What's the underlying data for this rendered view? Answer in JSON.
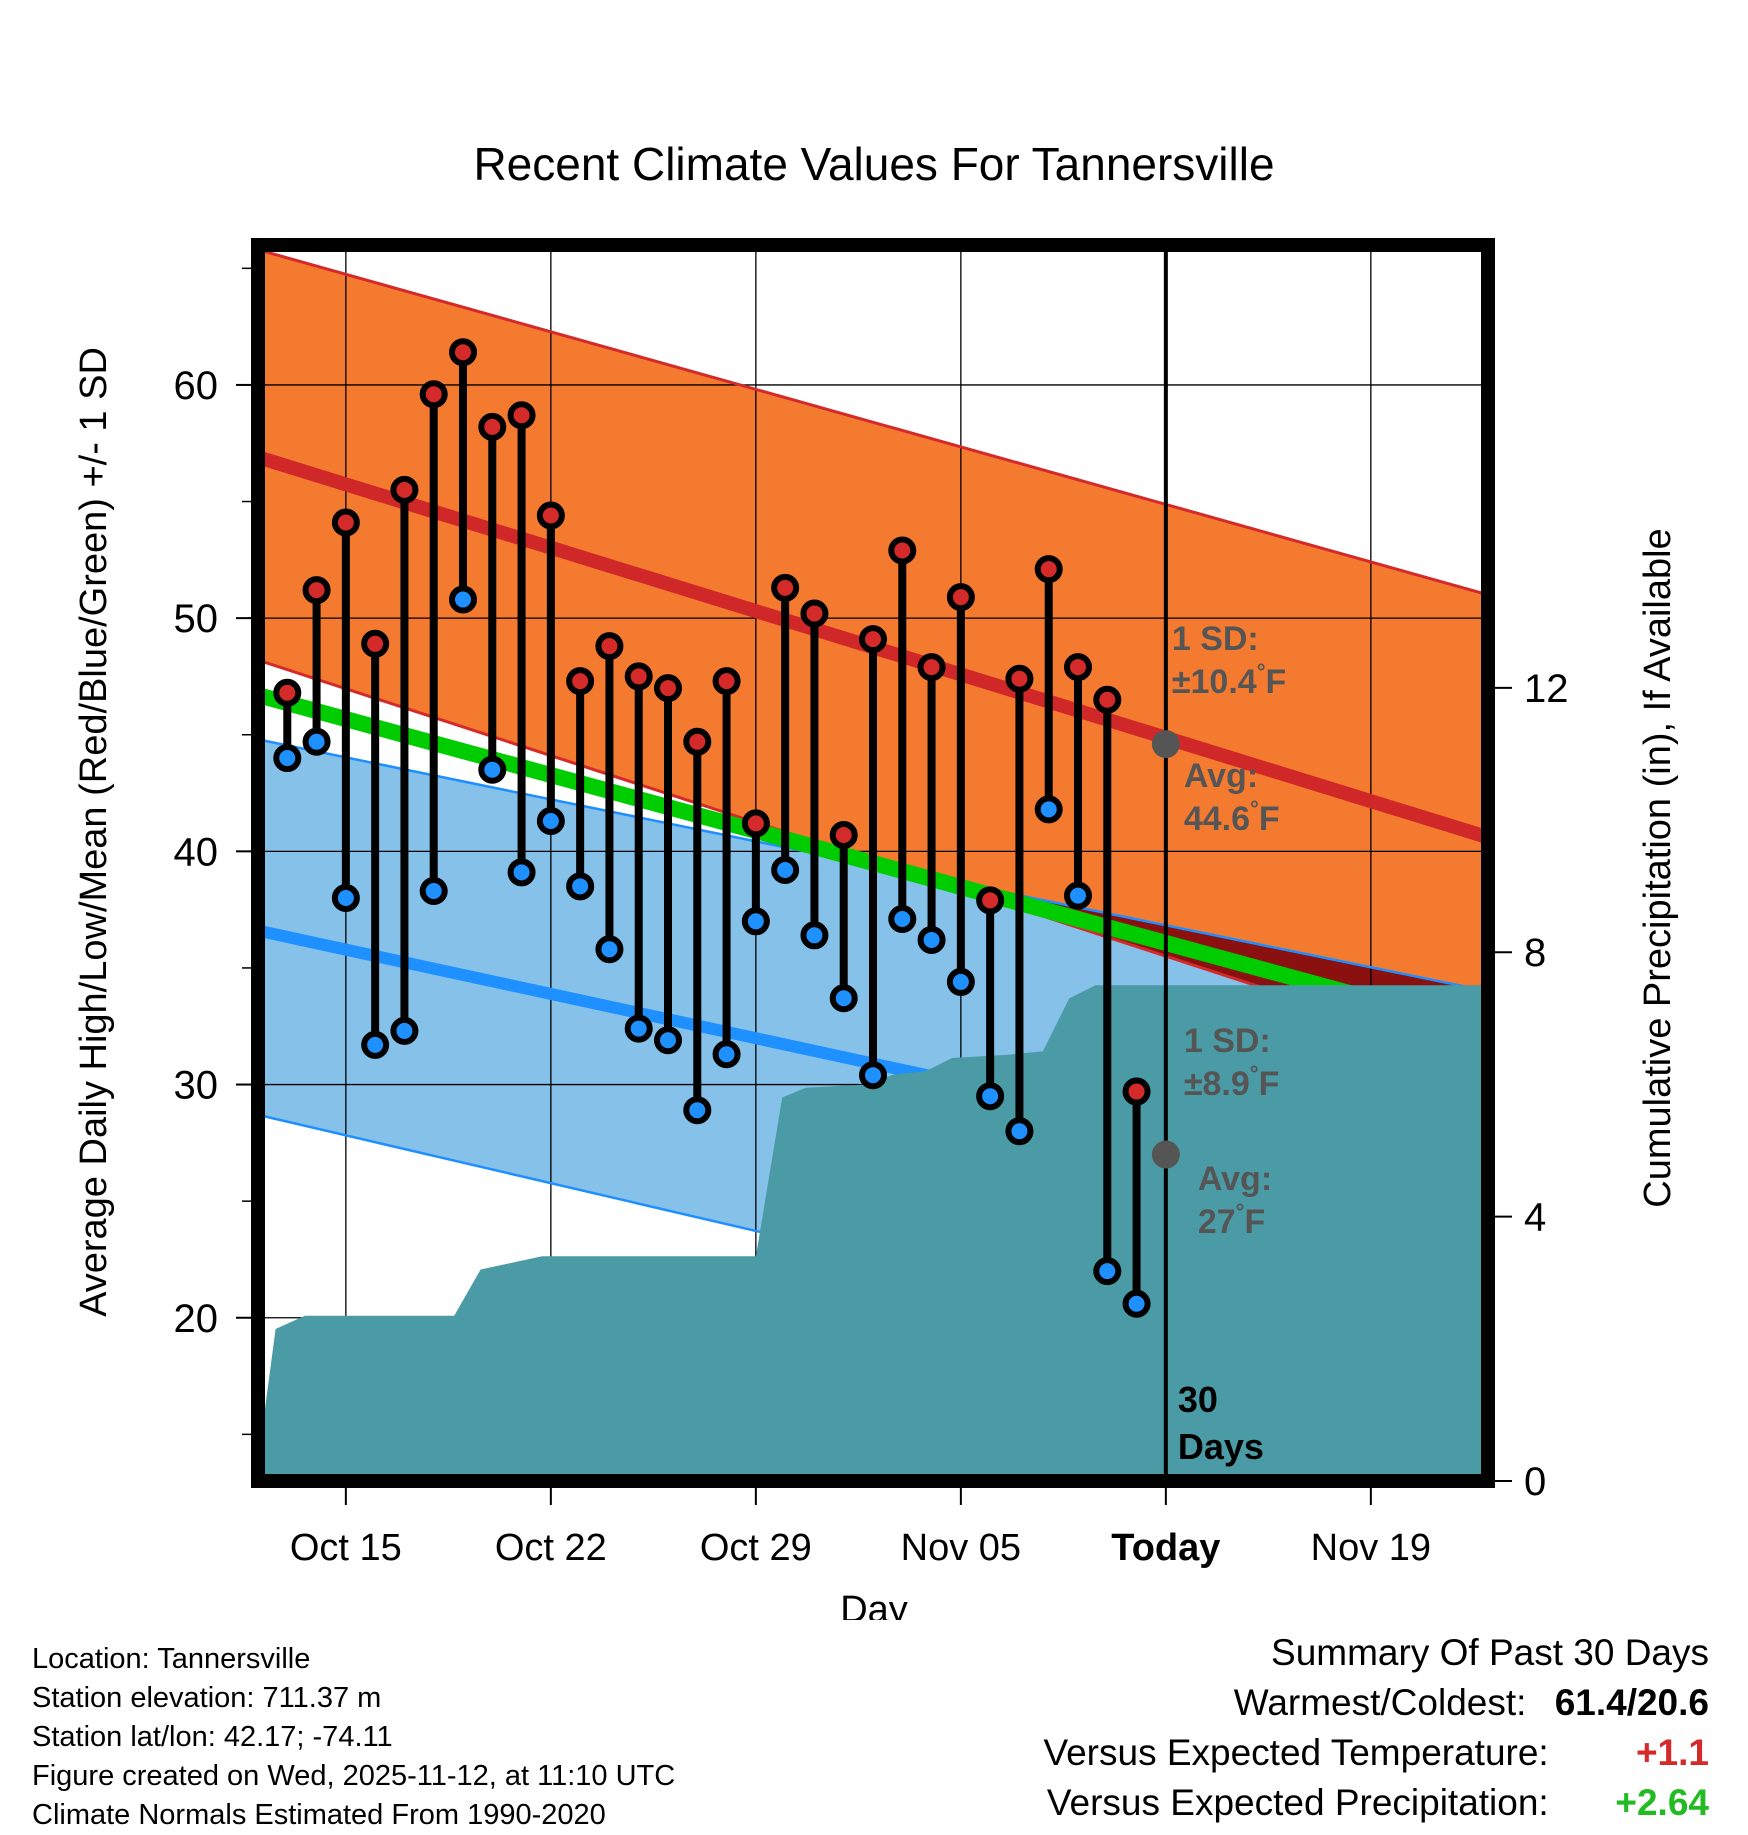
{
  "chart_data": {
    "type": "line",
    "title": "Recent Climate Values For Tannersville",
    "xlabel": "Day",
    "ylabel": "Average Daily High/Low/Mean (Red/Blue/Green) +/- 1 SD",
    "y2label": "Cumulative Precipitation (in), If Available",
    "ylim": [
      13,
      66
    ],
    "y2lim": [
      0,
      18.7
    ],
    "xlim_day": [
      0,
      42
    ],
    "x_ticks": [
      {
        "day": 3,
        "label": "Oct 15"
      },
      {
        "day": 10,
        "label": "Oct 22"
      },
      {
        "day": 17,
        "label": "Oct 29"
      },
      {
        "day": 24,
        "label": "Nov 05"
      },
      {
        "day": 31,
        "label": "Today"
      },
      {
        "day": 38,
        "label": "Nov 19"
      }
    ],
    "y_ticks": [
      20,
      30,
      40,
      50,
      60
    ],
    "y2_ticks": [
      0,
      4,
      8,
      12
    ],
    "today_day": 31,
    "daily_observations": {
      "start_label": "Oct 13",
      "days": [
        1,
        2,
        3,
        4,
        5,
        6,
        7,
        8,
        9,
        10,
        11,
        12,
        13,
        14,
        15,
        16,
        17,
        18,
        19,
        20,
        21,
        22,
        23,
        24,
        25,
        26,
        27,
        28,
        29,
        30
      ],
      "high": [
        46.8,
        51.2,
        54.1,
        48.9,
        55.5,
        59.6,
        61.4,
        58.2,
        58.7,
        54.4,
        47.3,
        48.8,
        47.5,
        47.0,
        44.7,
        47.3,
        41.2,
        51.3,
        50.2,
        40.7,
        49.1,
        52.9,
        47.9,
        50.9,
        37.9,
        47.4,
        52.1,
        47.9,
        46.5,
        29.7
      ],
      "low": [
        44.0,
        44.7,
        38.0,
        31.7,
        32.3,
        38.3,
        50.8,
        43.5,
        39.1,
        41.3,
        38.5,
        35.8,
        32.4,
        31.9,
        28.9,
        31.3,
        37.0,
        39.2,
        36.4,
        33.7,
        30.4,
        37.1,
        36.2,
        34.4,
        29.5,
        28.0,
        41.8,
        38.1,
        22.0,
        20.6
      ]
    },
    "normals": {
      "mean_high": {
        "start": 56.9,
        "end": 40.6
      },
      "high_sd_upper": {
        "start": 65.8,
        "end": 51.0
      },
      "high_sd_lower": {
        "start": 48.2,
        "end": 31.0
      },
      "mean_low": {
        "start": 36.6,
        "end": 25.2
      },
      "low_sd_upper": {
        "start": 44.8,
        "end": 34.0
      },
      "low_sd_lower": {
        "start": 28.7,
        "end": 16.4
      },
      "mean": {
        "start": 46.7,
        "end": 32.3
      }
    },
    "cumulative_precip_in": [
      {
        "day": 0,
        "value": 0.3
      },
      {
        "day": 0.6,
        "value": 2.3
      },
      {
        "day": 1.6,
        "value": 2.5
      },
      {
        "day": 6.7,
        "value": 2.5
      },
      {
        "day": 7.6,
        "value": 3.2
      },
      {
        "day": 9.7,
        "value": 3.4
      },
      {
        "day": 17.0,
        "value": 3.4
      },
      {
        "day": 17.9,
        "value": 5.8
      },
      {
        "day": 18.7,
        "value": 5.95
      },
      {
        "day": 20.8,
        "value": 6.0
      },
      {
        "day": 21.7,
        "value": 6.15
      },
      {
        "day": 22.8,
        "value": 6.2
      },
      {
        "day": 23.7,
        "value": 6.4
      },
      {
        "day": 25.6,
        "value": 6.45
      },
      {
        "day": 26.8,
        "value": 6.5
      },
      {
        "day": 27.7,
        "value": 7.3
      },
      {
        "day": 28.6,
        "value": 7.5
      },
      {
        "day": 42,
        "value": 7.5
      }
    ],
    "annotations": [
      {
        "label": "1 SD:",
        "value": "±10.4",
        "unit": "°F"
      },
      {
        "label": "Avg:",
        "value": "44.6",
        "unit": "°F",
        "point": 44.6
      },
      {
        "label": "1 SD:",
        "value": "±8.9",
        "unit": "°F"
      },
      {
        "label": "Avg:",
        "value": "27",
        "unit": "°F",
        "point": 27.0
      },
      {
        "label": "30",
        "value": "Days"
      }
    ],
    "colors": {
      "high_band": "#f47a30",
      "high_band_edge": "#d42a2a",
      "mean_high_line": "#d02828",
      "low_band": "#85c1e9",
      "low_band_edge": "#1f8fff",
      "mean_low_line": "#1e90ff",
      "mean_line": "#00cc00",
      "overlap": "#8b1010",
      "precip": "#4a9ba5",
      "high_marker": "#d42a2a",
      "low_marker": "#1e90ff",
      "annotation_text": "#555555"
    }
  },
  "info": {
    "location": "Location: Tannersville",
    "elevation": "Station elevation: 711.37 m",
    "latlon": "Station lat/lon: 42.17; -74.11",
    "created": "Figure created on Wed, 2025-11-12, at 11:10 UTC",
    "normals": "Climate Normals Estimated From 1990-2020"
  },
  "summary": {
    "heading": "Summary Of Past 30 Days",
    "warm_label": "Warmest/Coldest:",
    "warm_value": "61.4/20.6",
    "temp_label": "Versus Expected Temperature:",
    "temp_value": "+1.1",
    "temp_color": "#d42a2a",
    "precip_label": "Versus Expected Precipitation:",
    "precip_value": "+2.64",
    "precip_color": "#22bb22"
  }
}
